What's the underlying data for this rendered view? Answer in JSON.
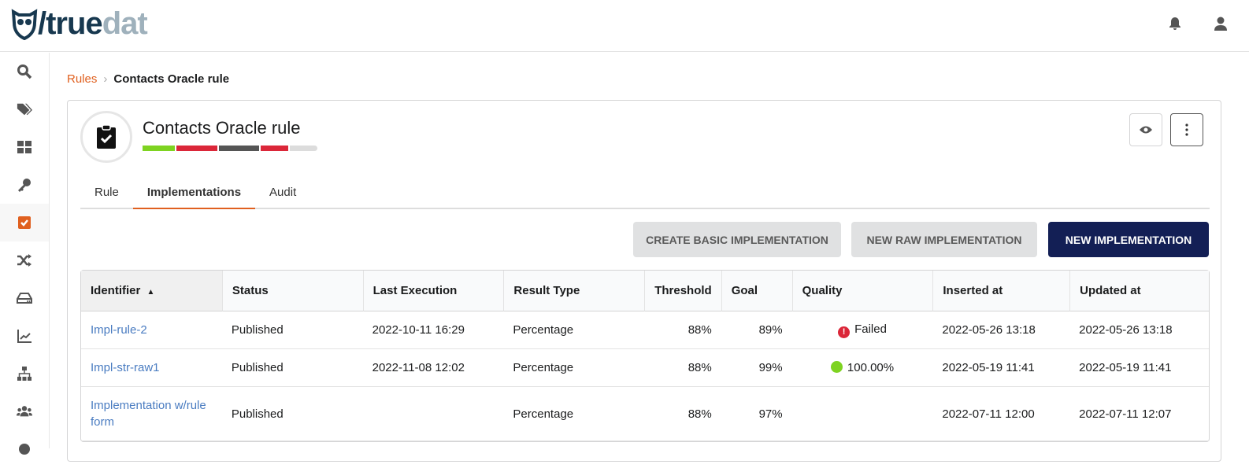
{
  "header": {
    "logo_text_1": "/true",
    "logo_text_2": "dat",
    "icons": [
      "bell-icon",
      "user-icon"
    ]
  },
  "sidebar": {
    "items": [
      {
        "icon": "search-icon"
      },
      {
        "icon": "tags-icon"
      },
      {
        "icon": "dashboard-icon"
      },
      {
        "icon": "key-icon"
      },
      {
        "icon": "rules-check-icon",
        "active": true
      },
      {
        "icon": "shuffle-icon"
      },
      {
        "icon": "storage-icon"
      },
      {
        "icon": "chart-icon"
      },
      {
        "icon": "hierarchy-icon"
      },
      {
        "icon": "users-icon"
      },
      {
        "icon": "settings-icon"
      }
    ]
  },
  "breadcrumb": {
    "parent": "Rules",
    "current": "Contacts Oracle rule"
  },
  "rule": {
    "title": "Contacts Oracle rule",
    "quality_bar": [
      "#7ed321",
      "#db2739",
      "#555555",
      "#db2739",
      "#dcdcdc"
    ]
  },
  "tabs": [
    {
      "label": "Rule"
    },
    {
      "label": "Implementations",
      "active": true
    },
    {
      "label": "Audit"
    }
  ],
  "actions": {
    "create_basic": "CREATE BASIC IMPLEMENTATION",
    "new_raw": "NEW RAW IMPLEMENTATION",
    "new": "NEW IMPLEMENTATION"
  },
  "table": {
    "columns": [
      "Identifier",
      "Status",
      "Last Execution",
      "Result Type",
      "Threshold",
      "Goal",
      "Quality",
      "Inserted at",
      "Updated at"
    ],
    "sort": {
      "column": "Identifier",
      "direction": "asc"
    },
    "rows": [
      {
        "identifier": "Impl-rule-2",
        "status": "Published",
        "last_execution": "2022-10-11 16:29",
        "result_type": "Percentage",
        "threshold": "88%",
        "goal": "89%",
        "quality": "Failed",
        "quality_icon": "error-icon",
        "inserted_at": "2022-05-26 13:18",
        "updated_at": "2022-05-26 13:18"
      },
      {
        "identifier": "Impl-str-raw1",
        "status": "Published",
        "last_execution": "2022-11-08 12:02",
        "result_type": "Percentage",
        "threshold": "88%",
        "goal": "99%",
        "quality": "100.00%",
        "quality_icon": "success-dot-icon",
        "inserted_at": "2022-05-19 11:41",
        "updated_at": "2022-05-19 11:41"
      },
      {
        "identifier": "Implementation w/rule form",
        "status": "Published",
        "last_execution": "",
        "result_type": "Percentage",
        "threshold": "88%",
        "goal": "97%",
        "quality": "",
        "inserted_at": "2022-07-11 12:00",
        "updated_at": "2022-07-11 12:07"
      }
    ]
  },
  "colors": {
    "accent": "#e0601f",
    "navy": "#131f55",
    "link": "#4a7cc1",
    "failed": "#db2739",
    "success": "#7ed321"
  }
}
